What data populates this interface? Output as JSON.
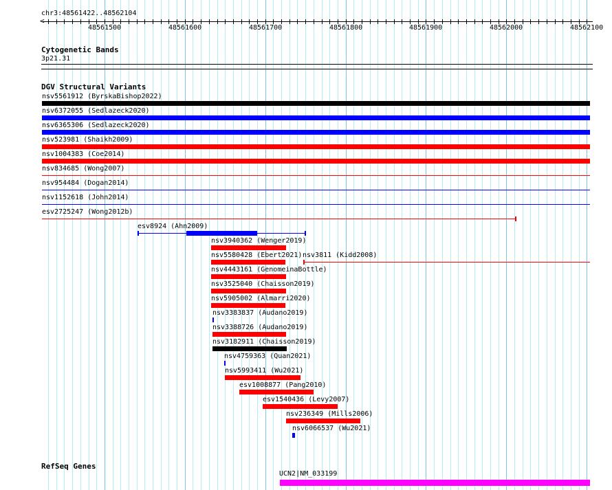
{
  "region": {
    "label": "chr3:48561422..48562104",
    "start": 48561422,
    "end": 48562104
  },
  "ruler": {
    "labels": [
      "48561500",
      "48561600",
      "48561700",
      "48561800",
      "48561900",
      "48562000",
      "48562100"
    ]
  },
  "colors": {
    "red": "#ff0000",
    "blue": "#0000ff",
    "black": "#000000",
    "magenta": "#ff00ff"
  },
  "cytoband_track": {
    "title": "Cytogenetic Bands",
    "band": "3p21.31"
  },
  "dgv_track": {
    "title": "DGV Structural Variants",
    "features": [
      {
        "label": "nsv5561912 (ByrskaBishop2022)",
        "start": 48561422,
        "end": 48562104,
        "color": "black",
        "style": "thick"
      },
      {
        "label": "nsv6372055 (Sedlazeck2020)",
        "start": 48561422,
        "end": 48562104,
        "color": "blue",
        "style": "thick"
      },
      {
        "label": "nsv6365306 (Sedlazeck2020)",
        "start": 48561422,
        "end": 48562104,
        "color": "blue",
        "style": "thick"
      },
      {
        "label": "nsv523981 (Shaikh2009)",
        "start": 48561422,
        "end": 48562104,
        "color": "red",
        "style": "thick"
      },
      {
        "label": "nsv1004383 (Coe2014)",
        "start": 48561422,
        "end": 48562104,
        "color": "red",
        "style": "thick"
      },
      {
        "label": "nsv834685 (Wong2007)",
        "start": 48561422,
        "end": 48562104,
        "color": "red",
        "style": "thin"
      },
      {
        "label": "nsv954484 (Dogan2014)",
        "start": 48561422,
        "end": 48562104,
        "color": "blue",
        "style": "thin"
      },
      {
        "label": "nsv1152618 (John2014)",
        "start": 48561422,
        "end": 48562104,
        "color": "blue",
        "style": "thin"
      },
      {
        "label": "esv2725247 (Wong2012b)",
        "start": 48561422,
        "end": 48562012,
        "color": "red",
        "style": "thin",
        "end_tick": true
      },
      {
        "label": "esv8924 (Ahn2009)",
        "start": 48561541,
        "end": 48561750,
        "color": "blue",
        "style": "thin",
        "start_tick": true,
        "end_tick": true,
        "thick_start": 48561602,
        "thick_end": 48561690
      },
      {
        "label": "nsv3940362 (Wenger2019)",
        "start": 48561633,
        "end": 48561726,
        "color": "red",
        "style": "thick"
      },
      {
        "label": "nsv5580428 (Ebert2021)",
        "start": 48561633,
        "end": 48561725,
        "color": "red",
        "style": "thick",
        "extra": {
          "label": "nsv3811 (Kidd2008)",
          "start": 48561747,
          "end": 48562104,
          "color": "red",
          "style": "thin",
          "start_tick": true
        }
      },
      {
        "label": "nsv4443161 (GenomeinaBottle)",
        "start": 48561633,
        "end": 48561726,
        "color": "red",
        "style": "thick"
      },
      {
        "label": "nsv3525040 (Chaisson2019)",
        "start": 48561633,
        "end": 48561726,
        "color": "red",
        "style": "thick"
      },
      {
        "label": "nsv5905002 (Almarri2020)",
        "start": 48561633,
        "end": 48561725,
        "color": "red",
        "style": "thick"
      },
      {
        "label": "nsv3383837 (Audano2019)",
        "start": 48561634,
        "end": 48561636,
        "color": "blue",
        "style": "thick"
      },
      {
        "label": "nsv3388726 (Audano2019)",
        "start": 48561634,
        "end": 48561726,
        "color": "red",
        "style": "thick"
      },
      {
        "label": "nsv3182911 (Chaisson2019)",
        "start": 48561634,
        "end": 48561727,
        "color": "black",
        "style": "thick"
      },
      {
        "label": "nsv4759363 (Quan2021)",
        "start": 48561649,
        "end": 48561651,
        "color": "blue",
        "style": "thick"
      },
      {
        "label": "nsv5993411 (Wu2021)",
        "start": 48561650,
        "end": 48561744,
        "color": "red",
        "style": "thick"
      },
      {
        "label": "esv1008877 (Pang2010)",
        "start": 48561668,
        "end": 48561760,
        "color": "red",
        "style": "thick"
      },
      {
        "label": "esv1540436 (Levy2007)",
        "start": 48561697,
        "end": 48561790,
        "color": "red",
        "style": "thick"
      },
      {
        "label": "nsv236349 (Mills2006)",
        "start": 48561726,
        "end": 48561818,
        "color": "red",
        "style": "thick"
      },
      {
        "label": "nsv6066537 (Wu2021)",
        "start": 48561734,
        "end": 48561737,
        "color": "blue",
        "style": "thick"
      }
    ]
  },
  "refseq_track": {
    "title": "RefSeq Genes",
    "gene": {
      "label": "UCN2|NM_033199",
      "start": 48561718,
      "end": 48562104,
      "color": "magenta"
    }
  }
}
